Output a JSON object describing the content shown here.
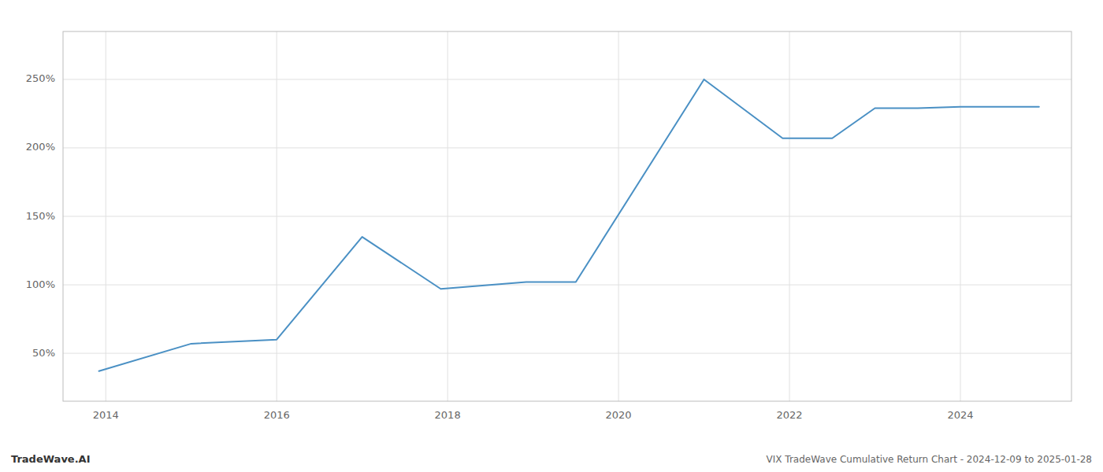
{
  "chart_data": {
    "type": "line",
    "x": [
      2013.92,
      2015.0,
      2016.0,
      2017.0,
      2017.92,
      2018.92,
      2019.5,
      2021.0,
      2021.92,
      2022.5,
      2023.0,
      2023.5,
      2024.0,
      2024.92
    ],
    "values": [
      37,
      57,
      60,
      135,
      97,
      102,
      102,
      250,
      207,
      207,
      229,
      229,
      230,
      230
    ],
    "color": "#4a90c4",
    "xlim": [
      2013.5,
      2025.3
    ],
    "xticks": [
      2014,
      2016,
      2018,
      2020,
      2022,
      2024
    ],
    "ylim": [
      15,
      285
    ],
    "yticks": [
      {
        "value": 50,
        "label": "50%"
      },
      {
        "value": 100,
        "label": "100%"
      },
      {
        "value": 150,
        "label": "150%"
      },
      {
        "value": 200,
        "label": "200%"
      },
      {
        "value": 250,
        "label": "250%"
      }
    ],
    "grid": true,
    "annotations": [
      "TradeWave.AI",
      "VIX TradeWave Cumulative Return Chart - 2024-12-09 to 2025-01-28"
    ]
  }
}
